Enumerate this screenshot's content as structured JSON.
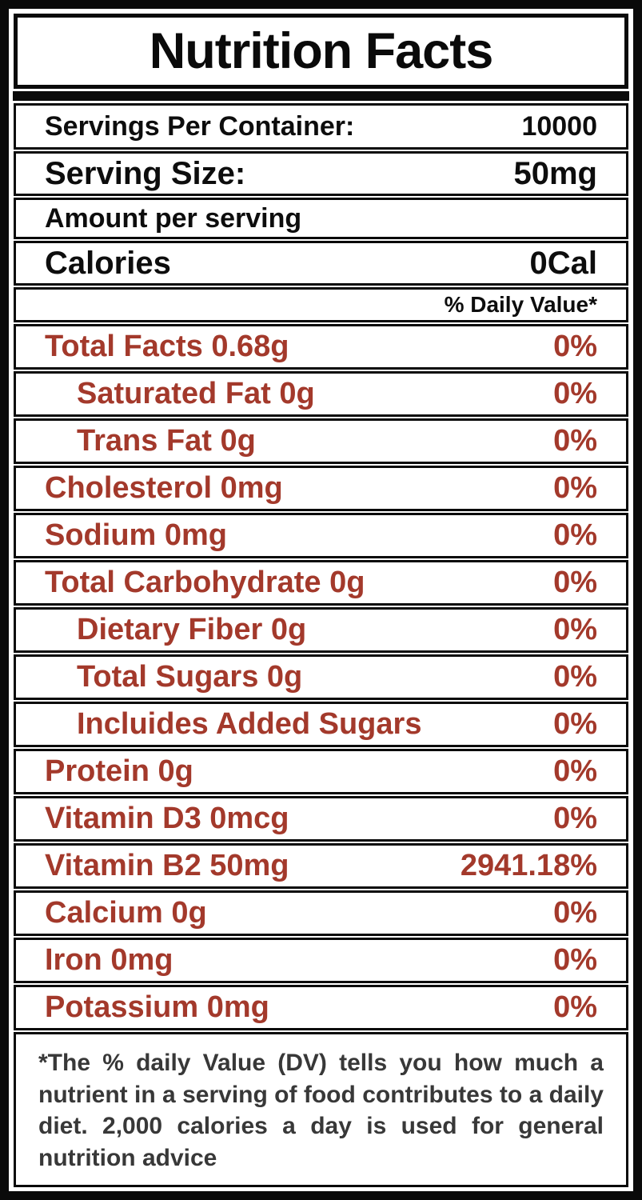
{
  "label": {
    "title": "Nutrition Facts",
    "servings_row": {
      "label": "Servings Per Container:",
      "value": "10000"
    },
    "serving_size_row": {
      "label": "Serving Size:",
      "value": "50mg"
    },
    "amount_row": {
      "label": "Amount per serving"
    },
    "calories_row": {
      "label": "Calories",
      "value": "0Cal"
    },
    "daily_value_header": "% Daily Value*",
    "nutrients": [
      {
        "name": "Total Facts 0.68g",
        "dv": "0%"
      },
      {
        "name": "Saturated Fat 0g",
        "dv": "0%"
      },
      {
        "name": "Trans Fat 0g",
        "dv": "0%"
      },
      {
        "name": "Cholesterol 0mg",
        "dv": "0%"
      },
      {
        "name": "Sodium 0mg",
        "dv": "0%"
      },
      {
        "name": "Total Carbohydrate 0g",
        "dv": "0%"
      },
      {
        "name": "Dietary Fiber 0g",
        "dv": "0%"
      },
      {
        "name": "Total Sugars 0g",
        "dv": "0%"
      },
      {
        "name": "Incluides Added Sugars",
        "dv": "0%"
      },
      {
        "name": "Protein 0g",
        "dv": "0%"
      },
      {
        "name": "Vitamin D3 0mcg",
        "dv": "0%"
      },
      {
        "name": "Vitamin B2 50mg",
        "dv": "2941.18%"
      },
      {
        "name": "Calcium 0g",
        "dv": "0%"
      },
      {
        "name": "Iron 0mg",
        "dv": "0%"
      },
      {
        "name": "Potassium 0mg",
        "dv": "0%"
      }
    ],
    "footnote": "*The % daily Value (DV) tells you how much a nutrient in a serving of food contributes to a daily diet. 2,000 calories a day  is used for general nutrition advice",
    "colors": {
      "nutrient_text": "#A3392B",
      "frame": "#0a0a0a",
      "footnote_text": "#383838"
    }
  }
}
